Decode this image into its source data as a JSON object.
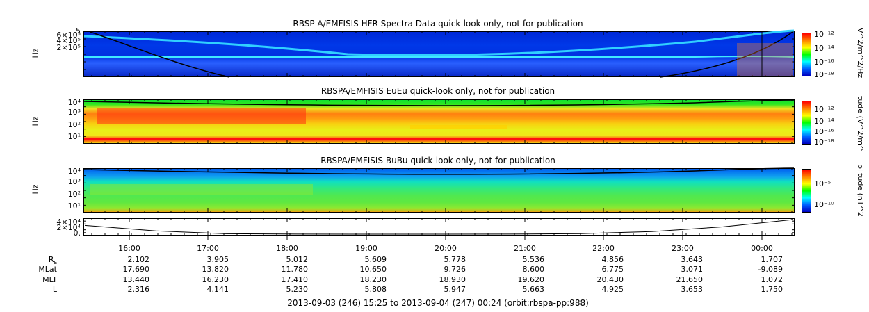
{
  "chart_data": [
    {
      "type": "heatmap",
      "title": "RBSP-A/EMFISIS  HFR Spectra Data quick-look only, not for publication",
      "ylabel": "Hz",
      "y_ticks": [
        "6×10⁵",
        "5",
        "4×10⁵",
        "2×10⁵"
      ],
      "colorbar_label": "V^2/m^2/Hz",
      "colorbar_ticks": [
        "10⁻¹²",
        "10⁻¹⁴",
        "10⁻¹⁶",
        "10⁻¹⁸"
      ]
    },
    {
      "type": "heatmap",
      "title": "RBSPA/EMFISIS  EuEu quick-look only, not for publication",
      "ylabel": "Hz",
      "y_ticks": [
        "10⁴",
        "10³",
        "10²",
        "10¹"
      ],
      "colorbar_label": "tude (V^2/m^",
      "colorbar_ticks": [
        "10⁻¹²",
        "10⁻¹⁴",
        "10⁻¹⁶",
        "10⁻¹⁸"
      ]
    },
    {
      "type": "heatmap",
      "title": "RBSPA/EMFISIS  BuBu quick-look only, not for publication",
      "ylabel": "Hz",
      "y_ticks": [
        "10⁴",
        "10³",
        "10²",
        "10¹"
      ],
      "colorbar_label": "plitude (nT^2",
      "colorbar_ticks": [
        "10⁻⁵",
        "10⁻¹⁰"
      ]
    },
    {
      "type": "line",
      "y_ticks": [
        "4×10⁴",
        "2×10⁴",
        "0."
      ],
      "x": [
        "15:25",
        "16:00",
        "17:00",
        "18:00",
        "19:00",
        "20:00",
        "21:00",
        "22:00",
        "23:00",
        "00:00",
        "00:24"
      ],
      "values": [
        24000,
        9000,
        1200,
        200,
        0,
        0,
        100,
        1500,
        7000,
        20000,
        40000
      ]
    }
  ],
  "time_axis": {
    "labels": [
      "16:00",
      "17:00",
      "18:00",
      "19:00",
      "20:00",
      "21:00",
      "22:00",
      "23:00",
      "00:00"
    ]
  },
  "ephemeris": [
    {
      "label": "R",
      "sub": "E",
      "values": [
        "2.102",
        "3.905",
        "5.012",
        "5.609",
        "5.778",
        "5.536",
        "4.856",
        "3.643",
        "1.707"
      ]
    },
    {
      "label": "MLat",
      "sub": "",
      "values": [
        "17.690",
        "13.820",
        "11.780",
        "10.650",
        "9.726",
        "8.600",
        "6.775",
        "3.071",
        "-9.089"
      ]
    },
    {
      "label": "MLT",
      "sub": "",
      "values": [
        "13.440",
        "16.230",
        "17.410",
        "18.230",
        "18.930",
        "19.620",
        "20.430",
        "21.650",
        "1.072"
      ]
    },
    {
      "label": "L",
      "sub": "",
      "values": [
        "2.316",
        "4.141",
        "5.230",
        "5.808",
        "5.947",
        "5.663",
        "4.925",
        "3.653",
        "1.750"
      ]
    }
  ],
  "footer": "2013-09-03 (246) 15:25 to 2013-09-04 (247) 00:24 (orbit:rbspa-pp:988)"
}
